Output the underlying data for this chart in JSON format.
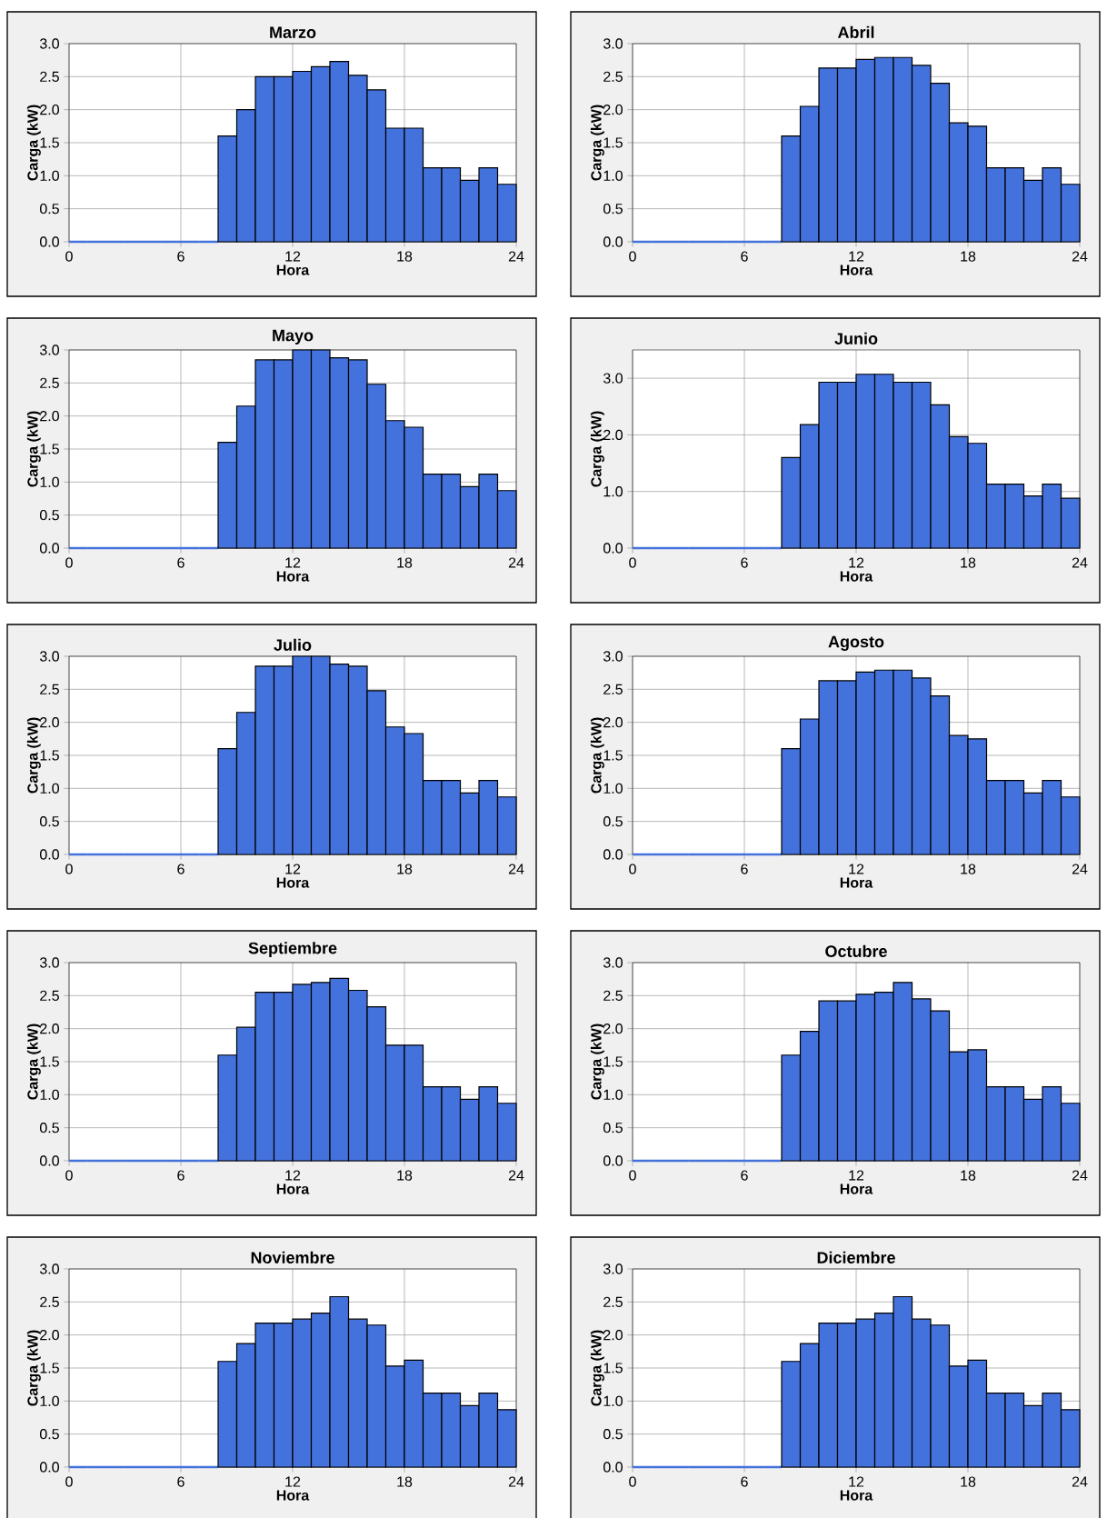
{
  "chart_data": [
    {
      "type": "histogram",
      "title": "Marzo",
      "xlabel": "Hora",
      "ylabel": "Carga (kW)",
      "bins": [
        0,
        1,
        2,
        3,
        4,
        5,
        6,
        7,
        8,
        9,
        10,
        11,
        12,
        13,
        14,
        15,
        16,
        17,
        18,
        19,
        20,
        21,
        22,
        23,
        24
      ],
      "values": [
        0,
        0,
        0,
        0,
        0,
        0,
        0,
        0,
        1.6,
        2.0,
        2.5,
        2.5,
        2.58,
        2.65,
        2.73,
        2.52,
        2.3,
        1.72,
        1.72,
        1.12,
        1.12,
        0.93,
        1.12,
        0.87
      ],
      "color": "#4472dc",
      "xlim": [
        0,
        24
      ],
      "ylim": [
        0,
        3
      ],
      "xticks": [
        0,
        6,
        12,
        18,
        24
      ],
      "yticks": [
        {
          "value": 0,
          "label": "0.0"
        },
        {
          "value": 0.5,
          "label": "0.5"
        },
        {
          "value": 1,
          "label": "1.0"
        },
        {
          "value": 1.5,
          "label": "1.5"
        },
        {
          "value": 2,
          "label": "2.0"
        },
        {
          "value": 2.5,
          "label": "2.5"
        },
        {
          "value": 3,
          "label": "3.0"
        }
      ],
      "grid": true
    },
    {
      "type": "histogram",
      "title": "Abril",
      "xlabel": "Hora",
      "ylabel": "Carga (kW)",
      "bins": [
        0,
        1,
        2,
        3,
        4,
        5,
        6,
        7,
        8,
        9,
        10,
        11,
        12,
        13,
        14,
        15,
        16,
        17,
        18,
        19,
        20,
        21,
        22,
        23,
        24
      ],
      "values": [
        0,
        0,
        0,
        0,
        0,
        0,
        0,
        0,
        1.6,
        2.05,
        2.63,
        2.63,
        2.76,
        2.79,
        2.79,
        2.67,
        2.4,
        1.8,
        1.75,
        1.12,
        1.12,
        0.93,
        1.12,
        0.87
      ],
      "color": "#4472dc",
      "xlim": [
        0,
        24
      ],
      "ylim": [
        0,
        3
      ],
      "xticks": [
        0,
        6,
        12,
        18,
        24
      ],
      "yticks": [
        {
          "value": 0,
          "label": "0.0"
        },
        {
          "value": 0.5,
          "label": "0.5"
        },
        {
          "value": 1,
          "label": "1.0"
        },
        {
          "value": 1.5,
          "label": "1.5"
        },
        {
          "value": 2,
          "label": "2.0"
        },
        {
          "value": 2.5,
          "label": "2.5"
        },
        {
          "value": 3,
          "label": "3.0"
        }
      ],
      "grid": true
    },
    {
      "type": "histogram",
      "title": "Mayo",
      "xlabel": "Hora",
      "ylabel": "Carga (kW)",
      "bins": [
        0,
        1,
        2,
        3,
        4,
        5,
        6,
        7,
        8,
        9,
        10,
        11,
        12,
        13,
        14,
        15,
        16,
        17,
        18,
        19,
        20,
        21,
        22,
        23,
        24
      ],
      "values": [
        0,
        0,
        0,
        0,
        0,
        0,
        0,
        0,
        1.6,
        2.15,
        2.85,
        2.85,
        3.0,
        3.0,
        2.88,
        2.85,
        2.48,
        1.93,
        1.83,
        1.12,
        1.12,
        0.93,
        1.12,
        0.87
      ],
      "color": "#4472dc",
      "xlim": [
        0,
        24
      ],
      "ylim": [
        0,
        3
      ],
      "xticks": [
        0,
        6,
        12,
        18,
        24
      ],
      "yticks": [
        {
          "value": 0,
          "label": "0.0"
        },
        {
          "value": 0.5,
          "label": "0.5"
        },
        {
          "value": 1,
          "label": "1.0"
        },
        {
          "value": 1.5,
          "label": "1.5"
        },
        {
          "value": 2,
          "label": "2.0"
        },
        {
          "value": 2.5,
          "label": "2.5"
        },
        {
          "value": 3,
          "label": "3.0"
        }
      ],
      "grid": true
    },
    {
      "type": "histogram",
      "title": "Junio",
      "xlabel": "Hora",
      "ylabel": "Carga (kW)",
      "bins": [
        0,
        1,
        2,
        3,
        4,
        5,
        6,
        7,
        8,
        9,
        10,
        11,
        12,
        13,
        14,
        15,
        16,
        17,
        18,
        19,
        20,
        21,
        22,
        23,
        24
      ],
      "values": [
        0,
        0,
        0,
        0,
        0,
        0,
        0,
        0,
        1.6,
        2.18,
        2.93,
        2.93,
        3.07,
        3.07,
        2.93,
        2.93,
        2.53,
        1.97,
        1.85,
        1.13,
        1.13,
        0.92,
        1.13,
        0.88
      ],
      "color": "#4472dc",
      "xlim": [
        0,
        24
      ],
      "ylim": [
        0,
        3.5
      ],
      "xticks": [
        0,
        6,
        12,
        18,
        24
      ],
      "yticks": [
        {
          "value": 0,
          "label": "0.0"
        },
        {
          "value": 1,
          "label": "1.0"
        },
        {
          "value": 2,
          "label": "2.0"
        },
        {
          "value": 3,
          "label": "3.0"
        }
      ],
      "grid": true
    },
    {
      "type": "histogram",
      "title": "Julio",
      "xlabel": "Hora",
      "ylabel": "Carga (kW)",
      "bins": [
        0,
        1,
        2,
        3,
        4,
        5,
        6,
        7,
        8,
        9,
        10,
        11,
        12,
        13,
        14,
        15,
        16,
        17,
        18,
        19,
        20,
        21,
        22,
        23,
        24
      ],
      "values": [
        0,
        0,
        0,
        0,
        0,
        0,
        0,
        0,
        1.6,
        2.15,
        2.85,
        2.85,
        3.0,
        3.0,
        2.88,
        2.85,
        2.48,
        1.93,
        1.83,
        1.12,
        1.12,
        0.93,
        1.12,
        0.87
      ],
      "color": "#4472dc",
      "xlim": [
        0,
        24
      ],
      "ylim": [
        0,
        3
      ],
      "xticks": [
        0,
        6,
        12,
        18,
        24
      ],
      "yticks": [
        {
          "value": 0,
          "label": "0.0"
        },
        {
          "value": 0.5,
          "label": "0.5"
        },
        {
          "value": 1,
          "label": "1.0"
        },
        {
          "value": 1.5,
          "label": "1.5"
        },
        {
          "value": 2,
          "label": "2.0"
        },
        {
          "value": 2.5,
          "label": "2.5"
        },
        {
          "value": 3,
          "label": "3.0"
        }
      ],
      "grid": true
    },
    {
      "type": "histogram",
      "title": "Agosto",
      "xlabel": "Hora",
      "ylabel": "Carga (kW)",
      "bins": [
        0,
        1,
        2,
        3,
        4,
        5,
        6,
        7,
        8,
        9,
        10,
        11,
        12,
        13,
        14,
        15,
        16,
        17,
        18,
        19,
        20,
        21,
        22,
        23,
        24
      ],
      "values": [
        0,
        0,
        0,
        0,
        0,
        0,
        0,
        0,
        1.6,
        2.05,
        2.63,
        2.63,
        2.76,
        2.79,
        2.79,
        2.67,
        2.4,
        1.8,
        1.75,
        1.12,
        1.12,
        0.93,
        1.12,
        0.87
      ],
      "color": "#4472dc",
      "xlim": [
        0,
        24
      ],
      "ylim": [
        0,
        3
      ],
      "xticks": [
        0,
        6,
        12,
        18,
        24
      ],
      "yticks": [
        {
          "value": 0,
          "label": "0.0"
        },
        {
          "value": 0.5,
          "label": "0.5"
        },
        {
          "value": 1,
          "label": "1.0"
        },
        {
          "value": 1.5,
          "label": "1.5"
        },
        {
          "value": 2,
          "label": "2.0"
        },
        {
          "value": 2.5,
          "label": "2.5"
        },
        {
          "value": 3,
          "label": "3.0"
        }
      ],
      "grid": true
    },
    {
      "type": "histogram",
      "title": "Septiembre",
      "xlabel": "Hora",
      "ylabel": "Carga (kW)",
      "bins": [
        0,
        1,
        2,
        3,
        4,
        5,
        6,
        7,
        8,
        9,
        10,
        11,
        12,
        13,
        14,
        15,
        16,
        17,
        18,
        19,
        20,
        21,
        22,
        23,
        24
      ],
      "values": [
        0,
        0,
        0,
        0,
        0,
        0,
        0,
        0,
        1.6,
        2.02,
        2.55,
        2.55,
        2.67,
        2.7,
        2.76,
        2.58,
        2.33,
        1.75,
        1.75,
        1.12,
        1.12,
        0.93,
        1.12,
        0.87
      ],
      "color": "#4472dc",
      "xlim": [
        0,
        24
      ],
      "ylim": [
        0,
        3
      ],
      "xticks": [
        0,
        6,
        12,
        18,
        24
      ],
      "yticks": [
        {
          "value": 0,
          "label": "0.0"
        },
        {
          "value": 0.5,
          "label": "0.5"
        },
        {
          "value": 1,
          "label": "1.0"
        },
        {
          "value": 1.5,
          "label": "1.5"
        },
        {
          "value": 2,
          "label": "2.0"
        },
        {
          "value": 2.5,
          "label": "2.5"
        },
        {
          "value": 3,
          "label": "3.0"
        }
      ],
      "grid": true
    },
    {
      "type": "histogram",
      "title": "Octubre",
      "xlabel": "Hora",
      "ylabel": "Carga (kW)",
      "bins": [
        0,
        1,
        2,
        3,
        4,
        5,
        6,
        7,
        8,
        9,
        10,
        11,
        12,
        13,
        14,
        15,
        16,
        17,
        18,
        19,
        20,
        21,
        22,
        23,
        24
      ],
      "values": [
        0,
        0,
        0,
        0,
        0,
        0,
        0,
        0,
        1.6,
        1.96,
        2.42,
        2.42,
        2.52,
        2.55,
        2.7,
        2.45,
        2.27,
        1.65,
        1.68,
        1.12,
        1.12,
        0.93,
        1.12,
        0.87
      ],
      "color": "#4472dc",
      "xlim": [
        0,
        24
      ],
      "ylim": [
        0,
        3
      ],
      "xticks": [
        0,
        6,
        12,
        18,
        24
      ],
      "yticks": [
        {
          "value": 0,
          "label": "0.0"
        },
        {
          "value": 0.5,
          "label": "0.5"
        },
        {
          "value": 1,
          "label": "1.0"
        },
        {
          "value": 1.5,
          "label": "1.5"
        },
        {
          "value": 2,
          "label": "2.0"
        },
        {
          "value": 2.5,
          "label": "2.5"
        },
        {
          "value": 3,
          "label": "3.0"
        }
      ],
      "grid": true
    },
    {
      "type": "histogram",
      "title": "Noviembre",
      "xlabel": "Hora",
      "ylabel": "Carga (kW)",
      "bins": [
        0,
        1,
        2,
        3,
        4,
        5,
        6,
        7,
        8,
        9,
        10,
        11,
        12,
        13,
        14,
        15,
        16,
        17,
        18,
        19,
        20,
        21,
        22,
        23,
        24
      ],
      "values": [
        0,
        0,
        0,
        0,
        0,
        0,
        0,
        0,
        1.6,
        1.87,
        2.18,
        2.18,
        2.24,
        2.33,
        2.58,
        2.24,
        2.15,
        1.53,
        1.62,
        1.12,
        1.12,
        0.93,
        1.12,
        0.87
      ],
      "color": "#4472dc",
      "xlim": [
        0,
        24
      ],
      "ylim": [
        0,
        3
      ],
      "xticks": [
        0,
        6,
        12,
        18,
        24
      ],
      "yticks": [
        {
          "value": 0,
          "label": "0.0"
        },
        {
          "value": 0.5,
          "label": "0.5"
        },
        {
          "value": 1,
          "label": "1.0"
        },
        {
          "value": 1.5,
          "label": "1.5"
        },
        {
          "value": 2,
          "label": "2.0"
        },
        {
          "value": 2.5,
          "label": "2.5"
        },
        {
          "value": 3,
          "label": "3.0"
        }
      ],
      "grid": true
    },
    {
      "type": "histogram",
      "title": "Diciembre",
      "xlabel": "Hora",
      "ylabel": "Carga (kW)",
      "bins": [
        0,
        1,
        2,
        3,
        4,
        5,
        6,
        7,
        8,
        9,
        10,
        11,
        12,
        13,
        14,
        15,
        16,
        17,
        18,
        19,
        20,
        21,
        22,
        23,
        24
      ],
      "values": [
        0,
        0,
        0,
        0,
        0,
        0,
        0,
        0,
        1.6,
        1.87,
        2.18,
        2.18,
        2.24,
        2.33,
        2.58,
        2.24,
        2.15,
        1.53,
        1.62,
        1.12,
        1.12,
        0.93,
        1.12,
        0.87
      ],
      "color": "#4472dc",
      "xlim": [
        0,
        24
      ],
      "ylim": [
        0,
        3
      ],
      "xticks": [
        0,
        6,
        12,
        18,
        24
      ],
      "yticks": [
        {
          "value": 0,
          "label": "0.0"
        },
        {
          "value": 0.5,
          "label": "0.5"
        },
        {
          "value": 1,
          "label": "1.0"
        },
        {
          "value": 1.5,
          "label": "1.5"
        },
        {
          "value": 2,
          "label": "2.0"
        },
        {
          "value": 2.5,
          "label": "2.5"
        },
        {
          "value": 3,
          "label": "3.0"
        }
      ],
      "grid": true
    }
  ]
}
